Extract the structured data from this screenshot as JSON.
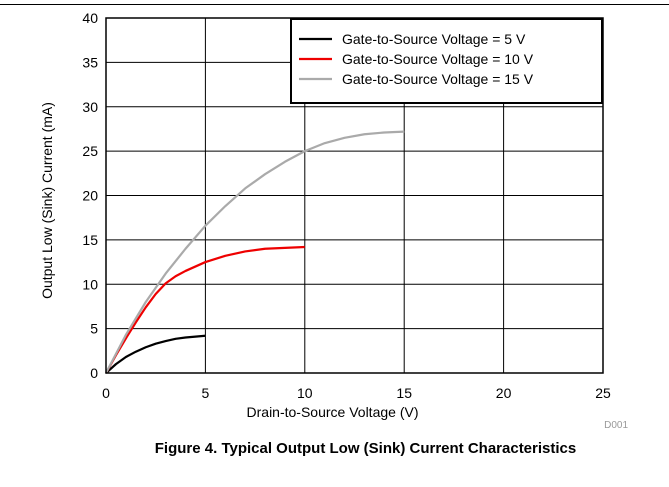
{
  "caption": "Figure 4. Typical Output Low (Sink) Current Characteristics",
  "chart_data": {
    "type": "line",
    "title": "",
    "xlabel": "Drain-to-Source Voltage (V)",
    "ylabel": "Output Low (Sink) Current (mA)",
    "xlim": [
      0,
      25
    ],
    "ylim": [
      0,
      40
    ],
    "xticks": [
      0,
      5,
      10,
      15,
      20,
      25
    ],
    "yticks": [
      0,
      5,
      10,
      15,
      20,
      25,
      30,
      35,
      40
    ],
    "grid": true,
    "legend_position": "top-right",
    "code_label": "D001",
    "series": [
      {
        "name": "Gate-to-Source Voltage = 5 V",
        "color": "#000000",
        "x": [
          0,
          0.5,
          1,
          1.5,
          2,
          2.5,
          3,
          3.5,
          4,
          4.5,
          5
        ],
        "y": [
          0,
          1.0,
          1.8,
          2.4,
          2.9,
          3.3,
          3.6,
          3.85,
          4.0,
          4.1,
          4.2
        ]
      },
      {
        "name": "Gate-to-Source Voltage = 10 V",
        "color": "#ee0000",
        "x": [
          0,
          0.5,
          1,
          1.5,
          2,
          2.5,
          3,
          3.5,
          4,
          5,
          6,
          7,
          8,
          9,
          10
        ],
        "y": [
          0,
          2.0,
          3.9,
          5.7,
          7.4,
          8.9,
          10.1,
          10.9,
          11.5,
          12.5,
          13.2,
          13.7,
          14.0,
          14.1,
          14.2
        ]
      },
      {
        "name": "Gate-to-Source Voltage = 15 V",
        "color": "#aaaaaa",
        "x": [
          0,
          1,
          2,
          3,
          4,
          5,
          6,
          7,
          8,
          9,
          10,
          11,
          12,
          13,
          14,
          15
        ],
        "y": [
          0,
          4.3,
          8.0,
          11.2,
          14.0,
          16.6,
          18.8,
          20.8,
          22.4,
          23.8,
          25.0,
          25.9,
          26.5,
          26.9,
          27.1,
          27.2
        ]
      }
    ]
  }
}
